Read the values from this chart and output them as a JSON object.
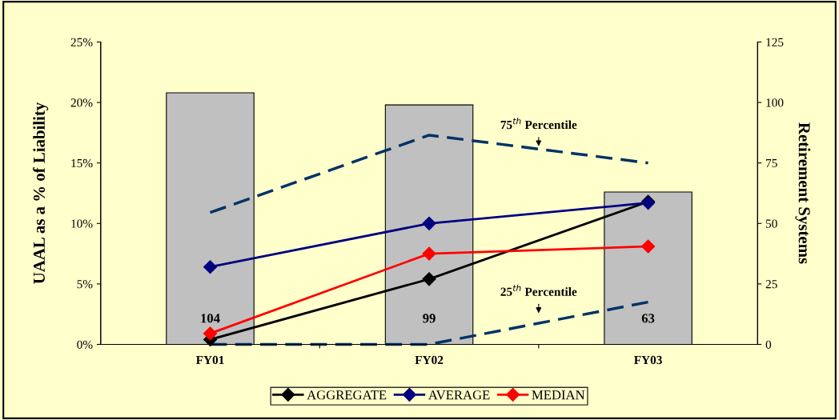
{
  "chart_data": {
    "type": "line",
    "ylabel": "UAAL as a % of Liability",
    "y2label": "Retirement Systems",
    "categories": [
      "FY01",
      "FY02",
      "FY03"
    ],
    "series": [
      {
        "type": "bar",
        "axis": "y2",
        "color": "#c0c0c0",
        "values": [
          104,
          99,
          63
        ],
        "data_labels": true
      },
      {
        "color": "#003366",
        "values": [
          10.9,
          17.3,
          15.0
        ],
        "line_style": "dashed",
        "marker": "none"
      },
      {
        "color": "#003366",
        "values": [
          0,
          0,
          3.5
        ],
        "line_style": "dashed",
        "marker": "none"
      },
      {
        "name": "AGGREGATE",
        "color": "#000000",
        "values": [
          0.4,
          5.4,
          11.8
        ],
        "line_style": "solid",
        "marker": "diamond"
      },
      {
        "name": "AVERAGE",
        "color": "#000080",
        "values": [
          6.4,
          10.0,
          11.7
        ],
        "line_style": "solid",
        "marker": "diamond"
      },
      {
        "name": "MEDIAN",
        "color": "#ff0000",
        "values": [
          0.9,
          7.5,
          8.1
        ],
        "line_style": "solid",
        "marker": "diamond"
      }
    ],
    "ylim": [
      0,
      25
    ],
    "yticks": [
      {
        "value": 0,
        "label": "0%"
      },
      {
        "value": 5,
        "label": "5%"
      },
      {
        "value": 10,
        "label": "10%"
      },
      {
        "value": 15,
        "label": "15%"
      },
      {
        "value": 20,
        "label": "20%"
      },
      {
        "value": 25,
        "label": "25%"
      }
    ],
    "y2lim": [
      0,
      125
    ],
    "y2ticks": [
      0,
      25,
      50,
      75,
      100,
      125
    ],
    "annotations": [
      "75$^{th}$ Percentile",
      "25$^{th}$ Percentile"
    ],
    "grid": false,
    "legend": "bottom"
  }
}
